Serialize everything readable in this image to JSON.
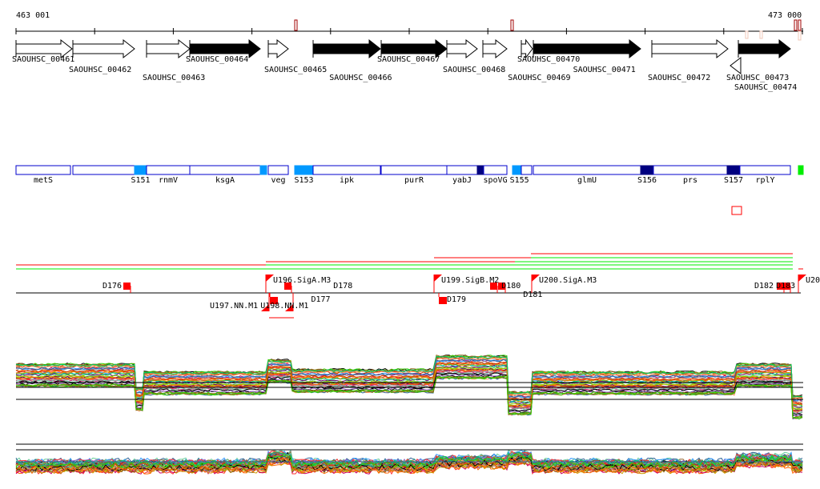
{
  "ruler": {
    "start_label": "463 001",
    "end_label": "473 000"
  },
  "genes": [
    {
      "id": "SAOUHSC_00461",
      "start": 20,
      "end": 90,
      "strand": "+",
      "filled": false,
      "row": 0
    },
    {
      "id": "SAOUHSC_00462",
      "start": 91,
      "end": 168,
      "strand": "+",
      "filled": false,
      "row": 1
    },
    {
      "id": "SAOUHSC_00463",
      "start": 183,
      "end": 237,
      "strand": "+",
      "filled": false,
      "row": 2
    },
    {
      "id": "SAOUHSC_00464",
      "start": 237,
      "end": 325,
      "strand": "+",
      "filled": true,
      "row": 0
    },
    {
      "id": "SAOUHSC_00465",
      "start": 335,
      "end": 360,
      "strand": "+",
      "filled": false,
      "row": 1
    },
    {
      "id": "SAOUHSC_00466",
      "start": 391,
      "end": 475,
      "strand": "+",
      "filled": true,
      "row": 2
    },
    {
      "id": "SAOUHSC_00467",
      "start": 476,
      "end": 558,
      "strand": "+",
      "filled": true,
      "row": 0
    },
    {
      "id": "SAOUHSC_00468",
      "start": 558,
      "end": 596,
      "strand": "+",
      "filled": false,
      "row": 1
    },
    {
      "id": "SAOUHSC_00469",
      "start": 603,
      "end": 633,
      "strand": "+",
      "filled": false,
      "row": 2
    },
    {
      "id": "SAOUHSC_00470",
      "start": 651,
      "end": 665,
      "strand": "+",
      "filled": false,
      "row": 0
    },
    {
      "id": "SAOUHSC_00471",
      "start": 666,
      "end": 800,
      "strand": "+",
      "filled": true,
      "row": 1
    },
    {
      "id": "SAOUHSC_00472",
      "start": 814,
      "end": 909,
      "strand": "+",
      "filled": false,
      "row": 2
    },
    {
      "id": "SAOUHSC_00473",
      "start": 912,
      "end": 925,
      "strand": "-",
      "filled": false,
      "row": 2
    },
    {
      "id": "SAOUHSC_00474",
      "start": 922,
      "end": 987,
      "strand": "+",
      "filled": true,
      "row": 1
    }
  ],
  "operons": [
    {
      "label": "metS",
      "start": 20,
      "end": 88,
      "type": "gene"
    },
    {
      "label": "",
      "start": 91,
      "end": 168,
      "type": "gene"
    },
    {
      "label": "S151",
      "start": 168,
      "end": 183,
      "type": "light"
    },
    {
      "label": "rnmV",
      "start": 183,
      "end": 237,
      "type": "gene"
    },
    {
      "label": "ksgA",
      "start": 237,
      "end": 325,
      "type": "gene"
    },
    {
      "label": "",
      "start": 325,
      "end": 333,
      "type": "light"
    },
    {
      "label": "veg",
      "start": 335,
      "end": 360,
      "type": "gene"
    },
    {
      "label": "S153",
      "start": 368,
      "end": 391,
      "type": "light"
    },
    {
      "label": "ipk",
      "start": 391,
      "end": 475,
      "type": "gene"
    },
    {
      "label": "purR",
      "start": 476,
      "end": 558,
      "type": "gene"
    },
    {
      "label": "yabJ",
      "start": 558,
      "end": 596,
      "type": "gene"
    },
    {
      "label": "",
      "start": 596,
      "end": 604,
      "type": "dark"
    },
    {
      "label": "spoVG",
      "start": 604,
      "end": 633,
      "type": "gene"
    },
    {
      "label": "S155",
      "start": 640,
      "end": 651,
      "type": "light"
    },
    {
      "label": "",
      "start": 651,
      "end": 664,
      "type": "gene"
    },
    {
      "label": "glmU",
      "start": 666,
      "end": 800,
      "type": "gene"
    },
    {
      "label": "S156",
      "start": 800,
      "end": 816,
      "type": "dark"
    },
    {
      "label": "prs",
      "start": 816,
      "end": 908,
      "type": "gene"
    },
    {
      "label": "S157",
      "start": 908,
      "end": 924,
      "type": "dark"
    },
    {
      "label": "rplY",
      "start": 924,
      "end": 987,
      "type": "gene"
    },
    {
      "label": "",
      "start": 997,
      "end": 1003,
      "type": "green"
    }
  ],
  "features": {
    "flags": [
      {
        "label": "U196.SigA.M3",
        "pos": 332,
        "side": "up"
      },
      {
        "label": "U199.SigB.M2",
        "pos": 542,
        "side": "up"
      },
      {
        "label": "U200.SigA.M3",
        "pos": 664,
        "side": "up"
      },
      {
        "label": "U20",
        "pos": 997,
        "side": "up"
      },
      {
        "label": "U197.NN.M1",
        "pos": 336,
        "side": "down"
      },
      {
        "label": "U198.NN.M1",
        "pos": 366,
        "side": "down"
      }
    ],
    "boxes": [
      {
        "label": "D176",
        "pos": 154,
        "side": "up"
      },
      {
        "label": "D178",
        "pos": 355,
        "side": "up"
      },
      {
        "label": "D177",
        "pos": 337,
        "side": "down"
      },
      {
        "label": "D179",
        "pos": 548,
        "side": "down"
      },
      {
        "label": "D180",
        "pos": 612,
        "side": "up"
      },
      {
        "label": "D181",
        "pos": 622,
        "side": "up"
      },
      {
        "label": "D182",
        "pos": 970,
        "side": "up"
      },
      {
        "label": "D183",
        "pos": 978,
        "side": "up"
      }
    ]
  },
  "colors": {
    "gene_outline": "#0000cc",
    "light": "#0099ff",
    "dark": "#000080",
    "marker": "#ff0000",
    "green": "#00ee00"
  },
  "profile_colors": [
    "#000000",
    "#8b6914",
    "#ff6600",
    "#33cc00",
    "#cc0066",
    "#3399ff",
    "#9966cc",
    "#996633",
    "#ff3333",
    "#66cc99",
    "#cc9900",
    "#660066",
    "#99cc00",
    "#ff9966",
    "#336699",
    "#999999",
    "#cc3300",
    "#00cc66"
  ]
}
